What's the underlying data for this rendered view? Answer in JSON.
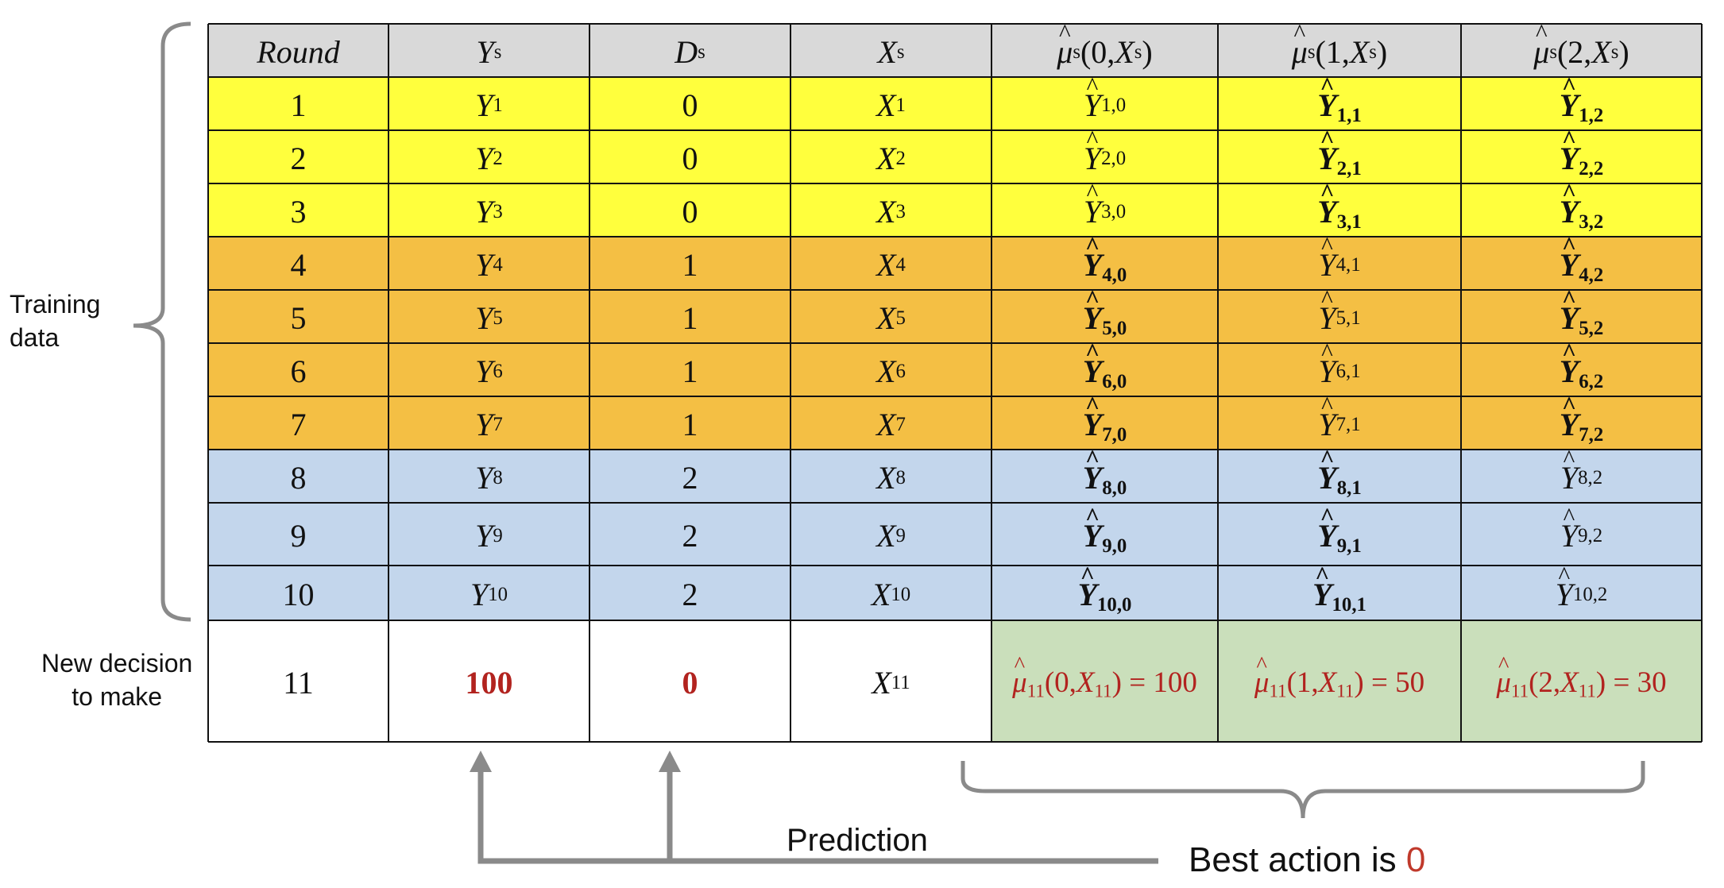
{
  "colors": {
    "header": "#d9d9d9",
    "yellow": "#ffff3d",
    "orange": "#f4bf44",
    "blue": "#c3d6ec",
    "green": "#cadfbb",
    "white": "#ffffff",
    "highlight_red": "#b2231f",
    "annotation_gray": "#8a8a8a"
  },
  "header": {
    "round": "Round",
    "y": {
      "base": "Y",
      "sub": "s"
    },
    "d": {
      "base": "D",
      "sub": "s"
    },
    "x": {
      "base": "X",
      "sub": "s"
    },
    "mu_symbol": "μ",
    "mu_sub": "s",
    "mu_actions": [
      "0",
      "1",
      "2"
    ],
    "x_arg": {
      "base": "X",
      "sub": "s"
    }
  },
  "training_rows": [
    {
      "round": "1",
      "y_sub": "1",
      "d": "0",
      "x_sub": "1",
      "band": "yellow",
      "preds": [
        {
          "sub": "1,0",
          "bold": false
        },
        {
          "sub": "1,1",
          "bold": true
        },
        {
          "sub": "1,2",
          "bold": true
        }
      ]
    },
    {
      "round": "2",
      "y_sub": "2",
      "d": "0",
      "x_sub": "2",
      "band": "yellow",
      "preds": [
        {
          "sub": "2,0",
          "bold": false
        },
        {
          "sub": "2,1",
          "bold": true
        },
        {
          "sub": "2,2",
          "bold": true
        }
      ]
    },
    {
      "round": "3",
      "y_sub": "3",
      "d": "0",
      "x_sub": "3",
      "band": "yellow",
      "preds": [
        {
          "sub": "3,0",
          "bold": false
        },
        {
          "sub": "3,1",
          "bold": true
        },
        {
          "sub": "3,2",
          "bold": true
        }
      ]
    },
    {
      "round": "4",
      "y_sub": "4",
      "d": "1",
      "x_sub": "4",
      "band": "orange",
      "preds": [
        {
          "sub": "4,0",
          "bold": true
        },
        {
          "sub": "4,1",
          "bold": false
        },
        {
          "sub": "4,2",
          "bold": true
        }
      ]
    },
    {
      "round": "5",
      "y_sub": "5",
      "d": "1",
      "x_sub": "5",
      "band": "orange",
      "preds": [
        {
          "sub": "5,0",
          "bold": true
        },
        {
          "sub": "5,1",
          "bold": false
        },
        {
          "sub": "5,2",
          "bold": true
        }
      ]
    },
    {
      "round": "6",
      "y_sub": "6",
      "d": "1",
      "x_sub": "6",
      "band": "orange",
      "preds": [
        {
          "sub": "6,0",
          "bold": true
        },
        {
          "sub": "6,1",
          "bold": false
        },
        {
          "sub": "6,2",
          "bold": true
        }
      ]
    },
    {
      "round": "7",
      "y_sub": "7",
      "d": "1",
      "x_sub": "7",
      "band": "orange",
      "preds": [
        {
          "sub": "7,0",
          "bold": true
        },
        {
          "sub": "7,1",
          "bold": false
        },
        {
          "sub": "7,2",
          "bold": true
        }
      ]
    },
    {
      "round": "8",
      "y_sub": "8",
      "d": "2",
      "x_sub": "8",
      "band": "blue",
      "preds": [
        {
          "sub": "8,0",
          "bold": true
        },
        {
          "sub": "8,1",
          "bold": true
        },
        {
          "sub": "8,2",
          "bold": false
        }
      ]
    },
    {
      "round": "9",
      "y_sub": "9",
      "d": "2",
      "x_sub": "9",
      "band": "blue",
      "preds": [
        {
          "sub": "9,0",
          "bold": true
        },
        {
          "sub": "9,1",
          "bold": true
        },
        {
          "sub": "9,2",
          "bold": false
        }
      ]
    },
    {
      "round": "10",
      "y_sub": "10",
      "d": "2",
      "x_sub": "10",
      "band": "blue",
      "preds": [
        {
          "sub": "10,0",
          "bold": true
        },
        {
          "sub": "10,1",
          "bold": true
        },
        {
          "sub": "10,2",
          "bold": false
        }
      ]
    }
  ],
  "new_row": {
    "round": "11",
    "y": "100",
    "d": "0",
    "x_sub": "11",
    "mu_sub": "11",
    "preds": [
      {
        "action": "0",
        "value": "100"
      },
      {
        "action": "1",
        "value": "50"
      },
      {
        "action": "2",
        "value": "30"
      }
    ]
  },
  "labels": {
    "training": "Training\ndata",
    "new_decision": "New decision\nto make",
    "prediction": "Prediction",
    "best_prefix": "Best action is ",
    "best_value": "0"
  }
}
